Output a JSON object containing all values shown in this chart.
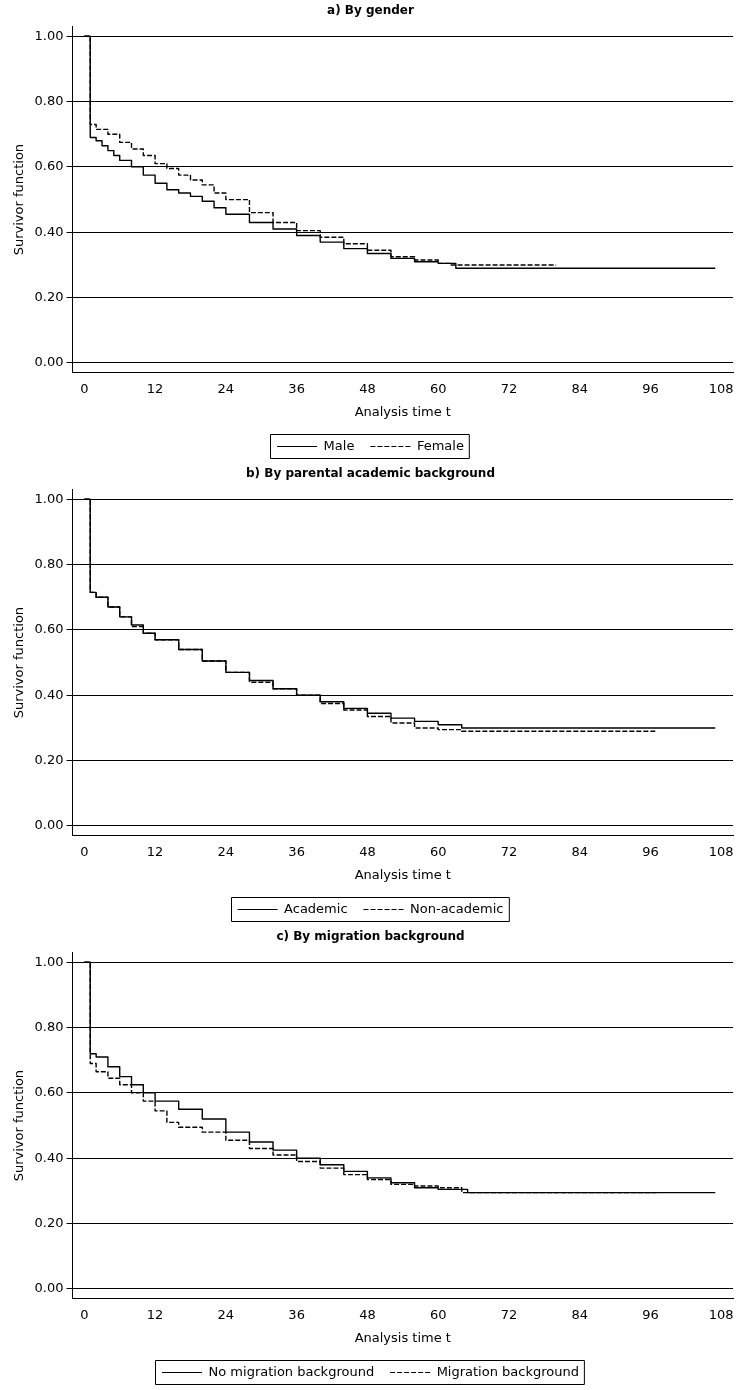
{
  "chart_data": [
    {
      "type": "step",
      "title": "a) By gender",
      "xlabel": "Analysis time t",
      "ylabel": "Survivor function",
      "xlim": [
        -2,
        110
      ],
      "xticks": [
        0,
        12,
        24,
        36,
        48,
        60,
        72,
        84,
        96,
        108
      ],
      "ylim": [
        -0.03,
        1.03
      ],
      "yticks": [
        {
          "value": 0,
          "label": "0.00"
        },
        {
          "value": 0.2,
          "label": "0.20"
        },
        {
          "value": 0.4,
          "label": "0.40"
        },
        {
          "value": 0.6,
          "label": "0.60"
        },
        {
          "value": 0.8,
          "label": "0.80"
        },
        {
          "value": 1,
          "label": "1.00"
        }
      ],
      "grid": "y",
      "legend": "bottom",
      "series": [
        {
          "name": "Male",
          "color": "#000000",
          "line_style": "solid",
          "x": [
            0,
            1,
            2,
            3,
            4,
            5,
            6,
            8,
            10,
            12,
            14,
            16,
            18,
            20,
            22,
            24,
            28,
            32,
            36,
            40,
            44,
            48,
            52,
            56,
            60,
            63,
            107
          ],
          "values": [
            1,
            0.69,
            0.68,
            0.665,
            0.65,
            0.635,
            0.62,
            0.6,
            0.575,
            0.55,
            0.53,
            0.52,
            0.51,
            0.495,
            0.475,
            0.455,
            0.43,
            0.41,
            0.39,
            0.37,
            0.35,
            0.335,
            0.32,
            0.31,
            0.305,
            0.29,
            0.29
          ]
        },
        {
          "name": "Female",
          "color": "#000000",
          "line_style": "dashed",
          "x": [
            0,
            1,
            2,
            4,
            6,
            8,
            10,
            12,
            14,
            16,
            18,
            20,
            22,
            24,
            28,
            32,
            36,
            40,
            44,
            48,
            52,
            56,
            60,
            62,
            80
          ],
          "values": [
            1,
            0.73,
            0.715,
            0.7,
            0.675,
            0.655,
            0.635,
            0.61,
            0.595,
            0.575,
            0.56,
            0.545,
            0.52,
            0.5,
            0.46,
            0.43,
            0.405,
            0.385,
            0.365,
            0.345,
            0.325,
            0.315,
            0.305,
            0.3,
            0.3
          ]
        }
      ]
    },
    {
      "type": "step",
      "title": "b) By parental academic background",
      "xlabel": "Analysis time t",
      "ylabel": "Survivor function",
      "xlim": [
        -2,
        110
      ],
      "xticks": [
        0,
        12,
        24,
        36,
        48,
        60,
        72,
        84,
        96,
        108
      ],
      "ylim": [
        -0.03,
        1.03
      ],
      "yticks": [
        {
          "value": 0,
          "label": "0.00"
        },
        {
          "value": 0.2,
          "label": "0.20"
        },
        {
          "value": 0.4,
          "label": "0.40"
        },
        {
          "value": 0.6,
          "label": "0.60"
        },
        {
          "value": 0.8,
          "label": "0.80"
        },
        {
          "value": 1,
          "label": "1.00"
        }
      ],
      "grid": "y",
      "legend": "bottom",
      "series": [
        {
          "name": "Academic",
          "color": "#000000",
          "line_style": "solid",
          "x": [
            0,
            1,
            2,
            4,
            6,
            8,
            10,
            12,
            16,
            20,
            24,
            28,
            32,
            36,
            40,
            44,
            48,
            52,
            56,
            60,
            64,
            107
          ],
          "values": [
            1,
            0.715,
            0.7,
            0.67,
            0.64,
            0.615,
            0.59,
            0.57,
            0.54,
            0.505,
            0.47,
            0.445,
            0.42,
            0.4,
            0.38,
            0.36,
            0.345,
            0.33,
            0.32,
            0.31,
            0.3,
            0.3
          ]
        },
        {
          "name": "Non-academic",
          "color": "#000000",
          "line_style": "dashed",
          "x": [
            0,
            1,
            2,
            4,
            6,
            8,
            10,
            12,
            16,
            20,
            24,
            28,
            32,
            36,
            40,
            44,
            48,
            52,
            56,
            60,
            64,
            97
          ],
          "values": [
            1,
            0.715,
            0.7,
            0.67,
            0.64,
            0.61,
            0.59,
            0.57,
            0.54,
            0.505,
            0.47,
            0.44,
            0.42,
            0.4,
            0.375,
            0.355,
            0.335,
            0.315,
            0.3,
            0.295,
            0.29,
            0.29
          ]
        }
      ]
    },
    {
      "type": "step",
      "title": "c) By migration background",
      "xlabel": "Analysis time t",
      "ylabel": "Survivor function",
      "xlim": [
        -2,
        110
      ],
      "xticks": [
        0,
        12,
        24,
        36,
        48,
        60,
        72,
        84,
        96,
        108
      ],
      "ylim": [
        -0.03,
        1.03
      ],
      "yticks": [
        {
          "value": 0,
          "label": "0.00"
        },
        {
          "value": 0.2,
          "label": "0.20"
        },
        {
          "value": 0.4,
          "label": "0.40"
        },
        {
          "value": 0.6,
          "label": "0.60"
        },
        {
          "value": 0.8,
          "label": "0.80"
        },
        {
          "value": 1,
          "label": "1.00"
        }
      ],
      "grid": "y",
      "legend": "bottom",
      "series": [
        {
          "name": "No migration background",
          "color": "#000000",
          "line_style": "solid",
          "x": [
            0,
            1,
            2,
            4,
            6,
            8,
            10,
            12,
            16,
            20,
            24,
            28,
            32,
            36,
            40,
            44,
            48,
            52,
            56,
            60,
            65,
            107
          ],
          "values": [
            1,
            0.72,
            0.71,
            0.68,
            0.65,
            0.625,
            0.6,
            0.575,
            0.55,
            0.52,
            0.48,
            0.45,
            0.425,
            0.4,
            0.38,
            0.36,
            0.34,
            0.325,
            0.31,
            0.305,
            0.295,
            0.295
          ]
        },
        {
          "name": "Migration background",
          "color": "#000000",
          "line_style": "dashed",
          "x": [
            0,
            1,
            2,
            4,
            6,
            8,
            10,
            12,
            14,
            16,
            20,
            24,
            28,
            32,
            36,
            40,
            44,
            48,
            52,
            56,
            60,
            64,
            97
          ],
          "values": [
            1,
            0.69,
            0.665,
            0.645,
            0.625,
            0.6,
            0.575,
            0.545,
            0.51,
            0.495,
            0.48,
            0.455,
            0.43,
            0.41,
            0.39,
            0.37,
            0.35,
            0.335,
            0.32,
            0.315,
            0.31,
            0.295,
            0.295
          ]
        }
      ]
    }
  ]
}
